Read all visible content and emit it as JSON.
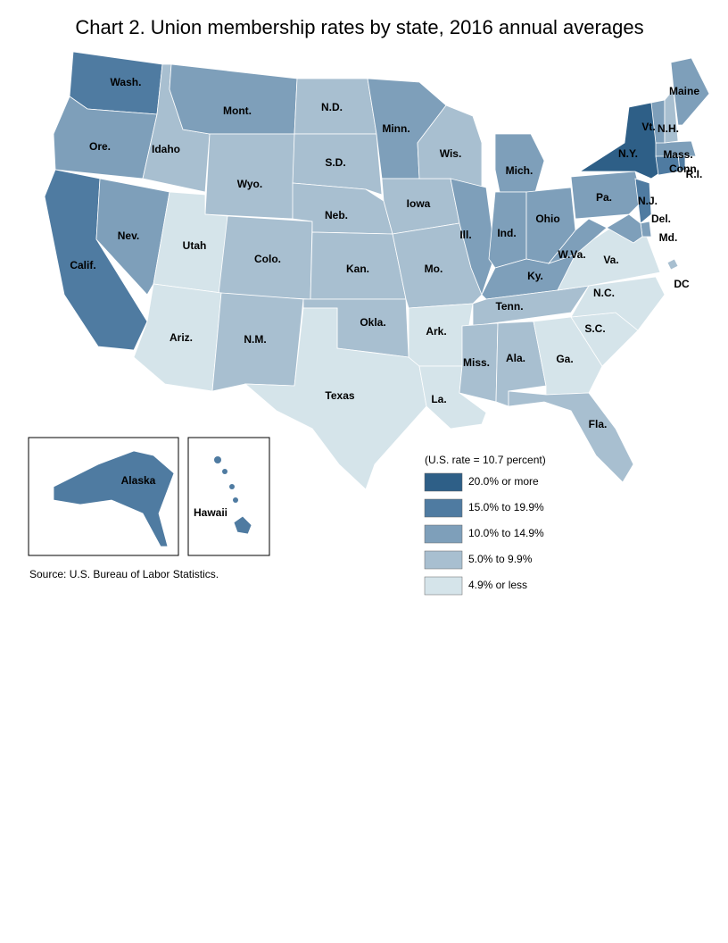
{
  "title": "Chart 2. Union membership rates by state, 2016 annual averages",
  "legend_title": "(U.S. rate = 10.7 percent)",
  "legend": [
    {
      "label": "20.0% or more",
      "color": "#2e5f87"
    },
    {
      "label": "15.0% to 19.9%",
      "color": "#4f7ba1"
    },
    {
      "label": "10.0% to 14.9%",
      "color": "#7e9fba"
    },
    {
      "label": "5.0% to 9.9%",
      "color": "#a8bfd0"
    },
    {
      "label": "4.9% or less",
      "color": "#d5e4ea"
    }
  ],
  "regions": [
    {
      "label": "Wash.",
      "color": "#4f7ba1"
    },
    {
      "label": "Ore.",
      "color": "#7e9fba"
    },
    {
      "label": "Calif.",
      "color": "#4f7ba1"
    },
    {
      "label": "Nev.",
      "color": "#7e9fba"
    },
    {
      "label": "Idaho",
      "color": "#a8bfd0"
    },
    {
      "label": "Mont.",
      "color": "#7e9fba"
    },
    {
      "label": "Wyo.",
      "color": "#a8bfd0"
    },
    {
      "label": "Utah",
      "color": "#d5e4ea"
    },
    {
      "label": "Colo.",
      "color": "#a8bfd0"
    },
    {
      "label": "Ariz.",
      "color": "#d5e4ea"
    },
    {
      "label": "N.M.",
      "color": "#a8bfd0"
    },
    {
      "label": "N.D.",
      "color": "#a8bfd0"
    },
    {
      "label": "S.D.",
      "color": "#a8bfd0"
    },
    {
      "label": "Neb.",
      "color": "#a8bfd0"
    },
    {
      "label": "Kan.",
      "color": "#a8bfd0"
    },
    {
      "label": "Okla.",
      "color": "#a8bfd0"
    },
    {
      "label": "Texas",
      "color": "#d5e4ea"
    },
    {
      "label": "Minn.",
      "color": "#7e9fba"
    },
    {
      "label": "Iowa",
      "color": "#a8bfd0"
    },
    {
      "label": "Mo.",
      "color": "#a8bfd0"
    },
    {
      "label": "Ark.",
      "color": "#d5e4ea"
    },
    {
      "label": "La.",
      "color": "#d5e4ea"
    },
    {
      "label": "Wis.",
      "color": "#a8bfd0"
    },
    {
      "label": "Ill.",
      "color": "#7e9fba"
    },
    {
      "label": "Mich.",
      "color": "#7e9fba"
    },
    {
      "label": "Ind.",
      "color": "#7e9fba"
    },
    {
      "label": "Ohio",
      "color": "#7e9fba"
    },
    {
      "label": "Ky.",
      "color": "#7e9fba"
    },
    {
      "label": "Tenn.",
      "color": "#a8bfd0"
    },
    {
      "label": "Miss.",
      "color": "#a8bfd0"
    },
    {
      "label": "Ala.",
      "color": "#a8bfd0"
    },
    {
      "label": "Ga.",
      "color": "#d5e4ea"
    },
    {
      "label": "Fla.",
      "color": "#a8bfd0"
    },
    {
      "label": "S.C.",
      "color": "#d5e4ea"
    },
    {
      "label": "N.C.",
      "color": "#d5e4ea"
    },
    {
      "label": "Va.",
      "color": "#d5e4ea"
    },
    {
      "label": "W.Va.",
      "color": "#7e9fba"
    },
    {
      "label": "Pa.",
      "color": "#7e9fba"
    },
    {
      "label": "N.Y.",
      "color": "#2e5f87"
    },
    {
      "label": "N.J.",
      "color": "#4f7ba1"
    },
    {
      "label": "Del.",
      "color": "#7e9fba"
    },
    {
      "label": "Md.",
      "color": "#7e9fba"
    },
    {
      "label": "Conn.",
      "color": "#4f7ba1"
    },
    {
      "label": "R.I.",
      "color": "#4f7ba1"
    },
    {
      "label": "Mass.",
      "color": "#7e9fba"
    },
    {
      "label": "Vt.",
      "color": "#7e9fba"
    },
    {
      "label": "N.H.",
      "color": "#a8bfd0"
    },
    {
      "label": "Maine",
      "color": "#7e9fba"
    },
    {
      "label": "DC",
      "color": "#a8bfd0"
    },
    {
      "label": "Alaska",
      "color": "#4f7ba1"
    },
    {
      "label": "Hawaii",
      "color": "#4f7ba1"
    }
  ],
  "source": "Source: U.S. Bureau of Labor Statistics."
}
